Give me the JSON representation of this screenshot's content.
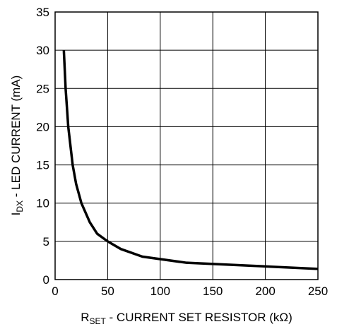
{
  "chart_data": {
    "type": "line",
    "xlabel": {
      "main": "R",
      "sub": "SET",
      "rest": " - CURRENT SET RESISTOR (kΩ)"
    },
    "ylabel": {
      "main": "I",
      "sub": "DX",
      "rest": " - LED CURRENT (mA)"
    },
    "x": [
      8.3,
      10,
      12.5,
      16.7,
      20,
      25,
      33,
      40,
      50,
      62.5,
      83,
      125,
      250
    ],
    "series": [
      {
        "color": "#000000",
        "values": [
          30,
          25,
          20,
          15,
          12.5,
          10,
          7.5,
          6,
          5,
          4,
          3,
          2.2,
          1.4
        ]
      }
    ],
    "xlim": [
      0,
      250
    ],
    "xticks": [
      0,
      50,
      100,
      150,
      200,
      250
    ],
    "ylim": [
      0,
      35
    ],
    "yticks": [
      0,
      5,
      10,
      15,
      20,
      25,
      30,
      35
    ],
    "grid": true
  }
}
